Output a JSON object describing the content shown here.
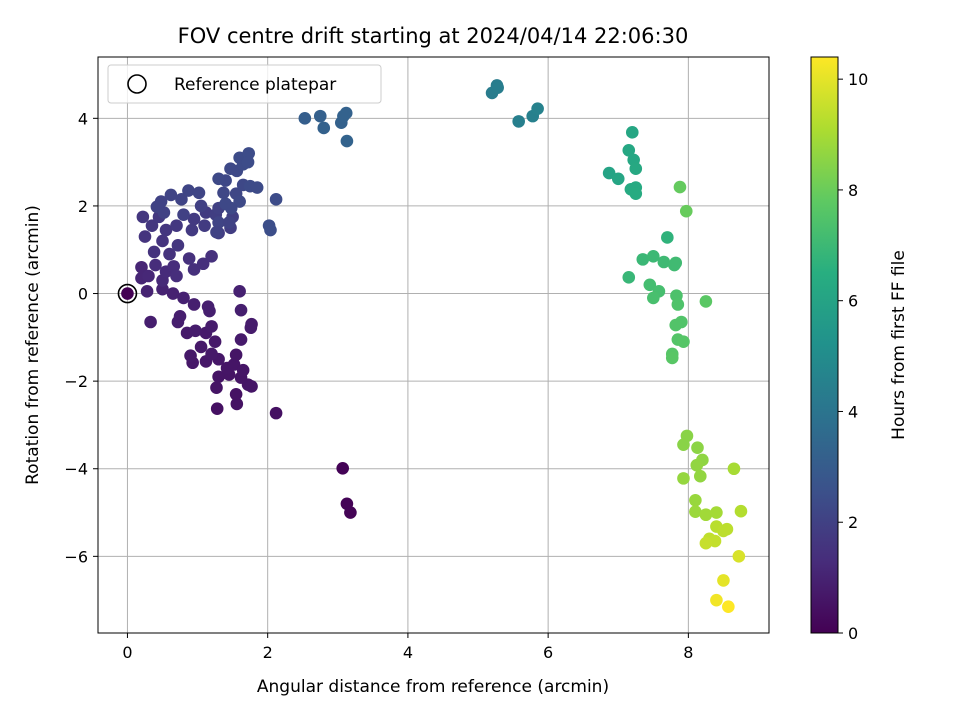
{
  "chart_data": {
    "type": "scatter",
    "title": "FOV centre drift starting at 2024/04/14 22:06:30",
    "xlabel": "Angular distance from reference (arcmin)",
    "ylabel": "Rotation from reference (arcmin)",
    "xlim": [
      -0.42,
      9.15
    ],
    "ylim": [
      -7.75,
      5.4
    ],
    "xticks": [
      0,
      2,
      4,
      6,
      8
    ],
    "yticks": [
      4,
      2,
      0,
      -2,
      -4,
      -6
    ],
    "grid": true,
    "legend": {
      "placement": "top-left",
      "entries": [
        "Reference platepar"
      ]
    },
    "colorbar": {
      "label": "Hours from first FF file",
      "range": [
        0,
        10.4
      ],
      "ticks": [
        0,
        2,
        4,
        6,
        8,
        10
      ],
      "colormap": "viridis"
    },
    "reference_point": {
      "x": 0,
      "y": 0
    },
    "points": [
      {
        "x": 0.0,
        "y": 0.0,
        "c": 0.0
      },
      {
        "x": 3.07,
        "y": -3.99,
        "c": 0.05
      },
      {
        "x": 3.13,
        "y": -4.8,
        "c": 0.07
      },
      {
        "x": 3.18,
        "y": -5.0,
        "c": 0.08
      },
      {
        "x": 2.12,
        "y": -2.73,
        "c": 0.45
      },
      {
        "x": 1.28,
        "y": -2.63,
        "c": 0.45
      },
      {
        "x": 1.56,
        "y": -2.52,
        "c": 0.5
      },
      {
        "x": 1.55,
        "y": -2.3,
        "c": 0.5
      },
      {
        "x": 1.27,
        "y": -2.15,
        "c": 0.55
      },
      {
        "x": 1.72,
        "y": -2.08,
        "c": 0.55
      },
      {
        "x": 1.77,
        "y": -2.12,
        "c": 0.6
      },
      {
        "x": 1.62,
        "y": -1.92,
        "c": 0.55
      },
      {
        "x": 1.45,
        "y": -1.85,
        "c": 0.55
      },
      {
        "x": 1.3,
        "y": -1.9,
        "c": 0.55
      },
      {
        "x": 1.42,
        "y": -1.7,
        "c": 0.6
      },
      {
        "x": 1.52,
        "y": -1.62,
        "c": 0.6
      },
      {
        "x": 1.65,
        "y": -1.75,
        "c": 0.6
      },
      {
        "x": 1.55,
        "y": -1.4,
        "c": 0.6
      },
      {
        "x": 1.3,
        "y": -1.5,
        "c": 0.65
      },
      {
        "x": 0.93,
        "y": -1.58,
        "c": 0.65
      },
      {
        "x": 1.12,
        "y": -1.55,
        "c": 0.65
      },
      {
        "x": 1.2,
        "y": -1.38,
        "c": 0.7
      },
      {
        "x": 0.9,
        "y": -1.42,
        "c": 0.7
      },
      {
        "x": 1.05,
        "y": -1.22,
        "c": 0.7
      },
      {
        "x": 1.25,
        "y": -1.1,
        "c": 0.7
      },
      {
        "x": 1.62,
        "y": -1.05,
        "c": 0.75
      },
      {
        "x": 1.12,
        "y": -0.9,
        "c": 0.75
      },
      {
        "x": 0.85,
        "y": -0.9,
        "c": 0.75
      },
      {
        "x": 1.2,
        "y": -0.75,
        "c": 0.8
      },
      {
        "x": 1.77,
        "y": -0.7,
        "c": 0.8
      },
      {
        "x": 1.76,
        "y": -0.78,
        "c": 0.8
      },
      {
        "x": 0.97,
        "y": -0.85,
        "c": 0.8
      },
      {
        "x": 0.72,
        "y": -0.65,
        "c": 0.85
      },
      {
        "x": 0.33,
        "y": -0.65,
        "c": 0.85
      },
      {
        "x": 0.75,
        "y": -0.52,
        "c": 0.85
      },
      {
        "x": 1.17,
        "y": -0.4,
        "c": 0.9
      },
      {
        "x": 1.62,
        "y": -0.38,
        "c": 0.9
      },
      {
        "x": 0.95,
        "y": -0.25,
        "c": 0.9
      },
      {
        "x": 1.15,
        "y": -0.3,
        "c": 0.9
      },
      {
        "x": 0.65,
        "y": 0.0,
        "c": 0.95
      },
      {
        "x": 0.8,
        "y": -0.1,
        "c": 0.95
      },
      {
        "x": 1.6,
        "y": 0.05,
        "c": 0.95
      },
      {
        "x": 0.28,
        "y": 0.05,
        "c": 1.0
      },
      {
        "x": 0.5,
        "y": 0.1,
        "c": 1.0
      },
      {
        "x": 0.2,
        "y": 0.35,
        "c": 1.1
      },
      {
        "x": 0.2,
        "y": 0.6,
        "c": 1.1
      },
      {
        "x": 0.3,
        "y": 0.4,
        "c": 1.15
      },
      {
        "x": 0.5,
        "y": 0.3,
        "c": 1.2
      },
      {
        "x": 0.55,
        "y": 0.5,
        "c": 1.25
      },
      {
        "x": 0.4,
        "y": 0.65,
        "c": 1.3
      },
      {
        "x": 0.66,
        "y": 0.62,
        "c": 1.3
      },
      {
        "x": 0.7,
        "y": 0.4,
        "c": 1.35
      },
      {
        "x": 0.95,
        "y": 0.55,
        "c": 1.4
      },
      {
        "x": 1.08,
        "y": 0.68,
        "c": 1.4
      },
      {
        "x": 1.2,
        "y": 0.85,
        "c": 1.45
      },
      {
        "x": 0.88,
        "y": 0.8,
        "c": 1.45
      },
      {
        "x": 0.6,
        "y": 0.9,
        "c": 1.5
      },
      {
        "x": 0.38,
        "y": 0.95,
        "c": 1.5
      },
      {
        "x": 0.25,
        "y": 1.3,
        "c": 1.55
      },
      {
        "x": 0.5,
        "y": 1.2,
        "c": 1.55
      },
      {
        "x": 0.72,
        "y": 1.1,
        "c": 1.6
      },
      {
        "x": 0.55,
        "y": 1.45,
        "c": 1.6
      },
      {
        "x": 0.35,
        "y": 1.55,
        "c": 1.65
      },
      {
        "x": 0.22,
        "y": 1.75,
        "c": 1.65
      },
      {
        "x": 0.45,
        "y": 1.75,
        "c": 1.7
      },
      {
        "x": 0.7,
        "y": 1.55,
        "c": 1.7
      },
      {
        "x": 0.92,
        "y": 1.45,
        "c": 1.75
      },
      {
        "x": 0.95,
        "y": 1.7,
        "c": 1.75
      },
      {
        "x": 1.1,
        "y": 1.55,
        "c": 1.8
      },
      {
        "x": 1.12,
        "y": 1.85,
        "c": 1.8
      },
      {
        "x": 1.3,
        "y": 1.38,
        "c": 1.85
      },
      {
        "x": 1.47,
        "y": 1.5,
        "c": 1.85
      },
      {
        "x": 1.26,
        "y": 1.8,
        "c": 1.9
      },
      {
        "x": 1.5,
        "y": 1.75,
        "c": 1.9
      },
      {
        "x": 1.3,
        "y": 1.95,
        "c": 1.95
      },
      {
        "x": 1.05,
        "y": 2.0,
        "c": 1.95
      },
      {
        "x": 0.8,
        "y": 1.8,
        "c": 2.0
      },
      {
        "x": 0.52,
        "y": 1.85,
        "c": 2.0
      },
      {
        "x": 0.42,
        "y": 1.98,
        "c": 2.05
      },
      {
        "x": 0.48,
        "y": 2.1,
        "c": 2.05
      },
      {
        "x": 0.77,
        "y": 2.15,
        "c": 2.1
      },
      {
        "x": 0.62,
        "y": 2.25,
        "c": 2.1
      },
      {
        "x": 0.87,
        "y": 2.35,
        "c": 2.15
      },
      {
        "x": 1.02,
        "y": 2.3,
        "c": 2.15
      },
      {
        "x": 1.37,
        "y": 2.3,
        "c": 2.2
      },
      {
        "x": 1.55,
        "y": 2.28,
        "c": 2.2
      },
      {
        "x": 1.65,
        "y": 2.48,
        "c": 2.25
      },
      {
        "x": 1.4,
        "y": 2.58,
        "c": 2.25
      },
      {
        "x": 1.56,
        "y": 2.8,
        "c": 2.3
      },
      {
        "x": 1.65,
        "y": 2.95,
        "c": 2.35
      },
      {
        "x": 1.6,
        "y": 3.1,
        "c": 2.35
      },
      {
        "x": 1.73,
        "y": 3.2,
        "c": 2.4
      },
      {
        "x": 1.72,
        "y": 3.0,
        "c": 2.4
      },
      {
        "x": 1.47,
        "y": 2.85,
        "c": 2.3
      },
      {
        "x": 1.3,
        "y": 2.62,
        "c": 2.3
      },
      {
        "x": 1.75,
        "y": 2.45,
        "c": 2.35
      },
      {
        "x": 1.85,
        "y": 2.42,
        "c": 2.35
      },
      {
        "x": 2.12,
        "y": 2.15,
        "c": 2.4
      },
      {
        "x": 1.6,
        "y": 2.1,
        "c": 2.3
      },
      {
        "x": 1.4,
        "y": 2.05,
        "c": 2.25
      },
      {
        "x": 1.48,
        "y": 1.95,
        "c": 2.25
      },
      {
        "x": 1.3,
        "y": 1.62,
        "c": 2.1
      },
      {
        "x": 1.27,
        "y": 1.4,
        "c": 2.05
      },
      {
        "x": 1.45,
        "y": 1.62,
        "c": 2.05
      },
      {
        "x": 2.02,
        "y": 1.55,
        "c": 2.45
      },
      {
        "x": 2.04,
        "y": 1.45,
        "c": 2.45
      },
      {
        "x": 2.53,
        "y": 4.0,
        "c": 3.1
      },
      {
        "x": 2.75,
        "y": 4.05,
        "c": 3.15
      },
      {
        "x": 2.8,
        "y": 3.78,
        "c": 3.2
      },
      {
        "x": 3.05,
        "y": 3.9,
        "c": 3.2
      },
      {
        "x": 3.08,
        "y": 4.05,
        "c": 3.25
      },
      {
        "x": 3.12,
        "y": 4.12,
        "c": 3.25
      },
      {
        "x": 3.13,
        "y": 3.48,
        "c": 3.3
      },
      {
        "x": 5.2,
        "y": 4.58,
        "c": 4.3
      },
      {
        "x": 5.27,
        "y": 4.75,
        "c": 4.3
      },
      {
        "x": 5.28,
        "y": 4.7,
        "c": 4.35
      },
      {
        "x": 5.58,
        "y": 3.93,
        "c": 4.45
      },
      {
        "x": 5.78,
        "y": 4.05,
        "c": 4.5
      },
      {
        "x": 5.85,
        "y": 4.22,
        "c": 4.55
      },
      {
        "x": 6.87,
        "y": 2.75,
        "c": 6.0
      },
      {
        "x": 7.0,
        "y": 2.62,
        "c": 6.1
      },
      {
        "x": 7.2,
        "y": 3.68,
        "c": 6.15
      },
      {
        "x": 7.15,
        "y": 3.27,
        "c": 6.2
      },
      {
        "x": 7.22,
        "y": 3.05,
        "c": 6.2
      },
      {
        "x": 7.25,
        "y": 2.85,
        "c": 6.25
      },
      {
        "x": 7.18,
        "y": 2.38,
        "c": 6.3
      },
      {
        "x": 7.25,
        "y": 2.42,
        "c": 6.3
      },
      {
        "x": 7.25,
        "y": 2.28,
        "c": 6.35
      },
      {
        "x": 7.7,
        "y": 1.28,
        "c": 6.7
      },
      {
        "x": 7.15,
        "y": 0.37,
        "c": 6.9
      },
      {
        "x": 7.35,
        "y": 0.78,
        "c": 6.95
      },
      {
        "x": 7.5,
        "y": 0.85,
        "c": 7.0
      },
      {
        "x": 7.65,
        "y": 0.72,
        "c": 7.05
      },
      {
        "x": 7.8,
        "y": 0.65,
        "c": 7.1
      },
      {
        "x": 7.82,
        "y": 0.7,
        "c": 7.1
      },
      {
        "x": 7.45,
        "y": 0.2,
        "c": 7.2
      },
      {
        "x": 7.58,
        "y": 0.05,
        "c": 7.25
      },
      {
        "x": 7.5,
        "y": -0.1,
        "c": 7.3
      },
      {
        "x": 7.83,
        "y": -0.05,
        "c": 7.4
      },
      {
        "x": 7.85,
        "y": -0.25,
        "c": 7.45
      },
      {
        "x": 7.9,
        "y": -0.65,
        "c": 7.5
      },
      {
        "x": 7.82,
        "y": -0.72,
        "c": 7.5
      },
      {
        "x": 7.85,
        "y": -1.05,
        "c": 7.55
      },
      {
        "x": 7.93,
        "y": -1.1,
        "c": 7.6
      },
      {
        "x": 7.77,
        "y": -1.38,
        "c": 7.6
      },
      {
        "x": 7.77,
        "y": -1.47,
        "c": 7.65
      },
      {
        "x": 8.25,
        "y": -0.18,
        "c": 7.7
      },
      {
        "x": 7.88,
        "y": 2.43,
        "c": 7.9
      },
      {
        "x": 7.97,
        "y": 1.88,
        "c": 7.95
      },
      {
        "x": 7.98,
        "y": -3.25,
        "c": 8.5
      },
      {
        "x": 7.93,
        "y": -3.45,
        "c": 8.5
      },
      {
        "x": 8.13,
        "y": -3.52,
        "c": 8.55
      },
      {
        "x": 8.2,
        "y": -3.8,
        "c": 8.6
      },
      {
        "x": 8.12,
        "y": -3.92,
        "c": 8.65
      },
      {
        "x": 8.17,
        "y": -4.17,
        "c": 8.65
      },
      {
        "x": 7.93,
        "y": -4.22,
        "c": 8.7
      },
      {
        "x": 8.1,
        "y": -4.72,
        "c": 8.75
      },
      {
        "x": 8.1,
        "y": -4.98,
        "c": 8.8
      },
      {
        "x": 8.25,
        "y": -5.05,
        "c": 8.9
      },
      {
        "x": 8.4,
        "y": -5.0,
        "c": 8.95
      },
      {
        "x": 8.65,
        "y": -4.0,
        "c": 9.0
      },
      {
        "x": 8.75,
        "y": -4.97,
        "c": 9.2
      },
      {
        "x": 8.4,
        "y": -5.32,
        "c": 9.3
      },
      {
        "x": 8.5,
        "y": -5.42,
        "c": 9.35
      },
      {
        "x": 8.55,
        "y": -5.38,
        "c": 9.35
      },
      {
        "x": 8.3,
        "y": -5.6,
        "c": 9.4
      },
      {
        "x": 8.38,
        "y": -5.65,
        "c": 9.45
      },
      {
        "x": 8.25,
        "y": -5.7,
        "c": 9.5
      },
      {
        "x": 8.72,
        "y": -6.0,
        "c": 9.8
      },
      {
        "x": 8.5,
        "y": -6.55,
        "c": 10.0
      },
      {
        "x": 8.4,
        "y": -7.0,
        "c": 10.2
      },
      {
        "x": 8.57,
        "y": -7.15,
        "c": 10.4
      }
    ]
  }
}
